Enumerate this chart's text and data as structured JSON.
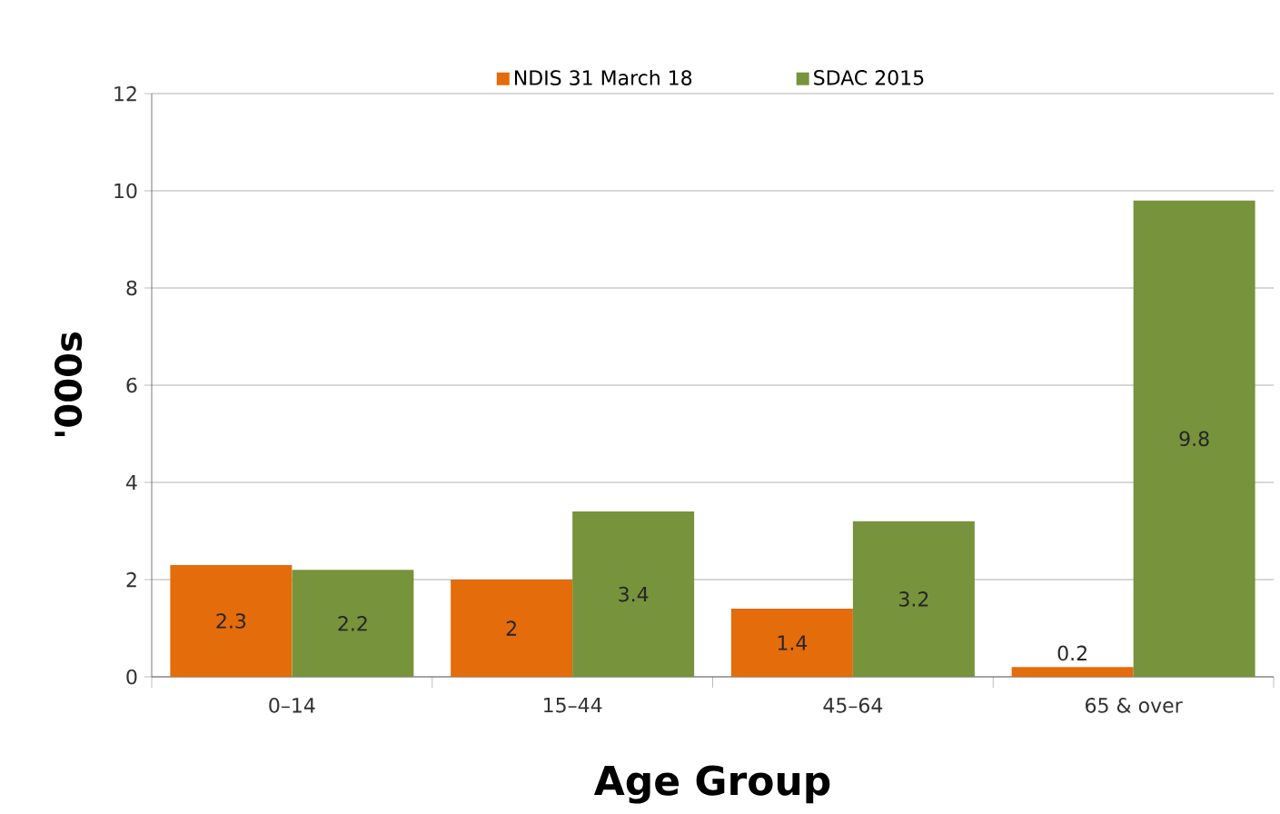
{
  "chart_data": {
    "type": "bar",
    "xlabel": "Age Group",
    "ylabel": "'000s",
    "categories": [
      "0–14",
      "15–44",
      "45–64",
      "65 & over"
    ],
    "series": [
      {
        "name": "NDIS 31 March 18",
        "color": "#e46c0a",
        "values": [
          2.3,
          2,
          1.4,
          0.2
        ]
      },
      {
        "name": "SDAC 2015",
        "color": "#77933c",
        "values": [
          2.2,
          3.4,
          3.2,
          9.8
        ]
      }
    ],
    "ylim": [
      0,
      12
    ],
    "yticks": [
      0,
      2,
      4,
      6,
      8,
      10,
      12
    ],
    "grid": "y",
    "legend": "top",
    "data_labels": true
  }
}
